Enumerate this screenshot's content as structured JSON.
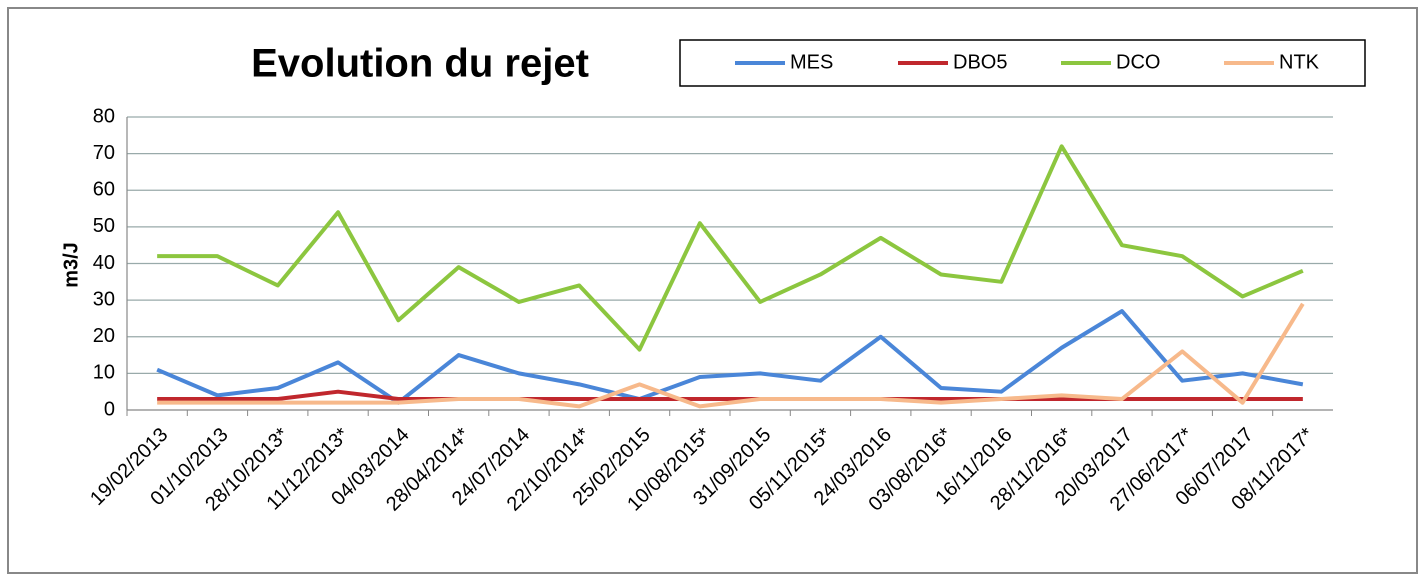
{
  "chart_data": {
    "type": "line",
    "title": "Evolution du rejet",
    "y_label": "m3/J",
    "categories": [
      "19/02/2013",
      "01/10/2013",
      "28/10/2013*",
      "11/12/2013*",
      "04/03/2014",
      "28/04/2014*",
      "24/07/2014",
      "22/10/2014*",
      "25/02/2015",
      "10/08/2015*",
      "31/09/2015",
      "05/11/2015*",
      "24/03/2016",
      "03/08/2016*",
      "16/11/2016",
      "28/11/2016*",
      "20/03/2017",
      "27/06/2017*",
      "06/07/2017",
      "08/11/2017*"
    ],
    "series": [
      {
        "name": "MES",
        "color": "#4a86d8",
        "values": [
          11,
          4,
          6,
          13,
          2,
          15,
          10,
          7,
          3,
          9,
          10,
          8,
          20,
          6,
          5,
          17,
          27,
          8,
          10,
          7
        ]
      },
      {
        "name": "DBO5",
        "color": "#c0272d",
        "values": [
          3,
          3,
          3,
          5,
          3,
          3,
          3,
          3,
          3,
          3,
          3,
          3,
          3,
          3,
          3,
          3,
          3,
          3,
          3,
          3
        ]
      },
      {
        "name": "DCO",
        "color": "#8cc63f",
        "values": [
          42,
          42,
          34,
          54,
          24.5,
          39,
          29.5,
          34,
          16.5,
          51,
          29.5,
          37,
          47,
          37,
          35,
          72,
          45,
          42,
          31,
          38
        ]
      },
      {
        "name": "NTK",
        "color": "#f7b98b",
        "values": [
          2,
          2,
          2,
          2,
          2,
          3,
          3,
          1,
          7,
          1,
          3,
          3,
          3,
          2,
          3,
          4,
          3,
          16,
          2,
          29
        ]
      }
    ],
    "ylim": [
      0,
      80
    ],
    "yticks": [
      0,
      10,
      20,
      30,
      40,
      50,
      60,
      70,
      80
    ],
    "grid": true,
    "legend": "top"
  }
}
